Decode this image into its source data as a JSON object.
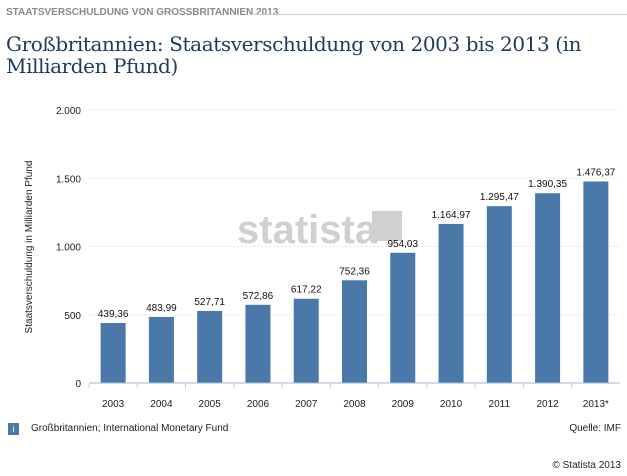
{
  "header": {
    "kicker": "STAATSVERSCHULDUNG VON GROSSBRITANNIEN 2013",
    "title": "Großbritannien: Staatsverschuldung von 2003 bis 2013 (in Milliarden Pfund)"
  },
  "footer": {
    "info_icon": "i",
    "source_note": "Großbritannien; International Monetary Fund",
    "quelle": "Quelle: IMF",
    "copyright": "© Statista 2013"
  },
  "watermark": "statista",
  "chart_data": {
    "type": "bar",
    "title": "Großbritannien: Staatsverschuldung von 2003 bis 2013 (in Milliarden Pfund)",
    "xlabel": "",
    "ylabel": "Staatsverschuldung in Milliarden Pfund",
    "ylim": [
      0,
      2000
    ],
    "yticks": [
      0,
      500,
      1000,
      1500,
      2000
    ],
    "ytick_labels": [
      "0",
      "500",
      "1.000",
      "1.500",
      "2.000"
    ],
    "categories": [
      "2003",
      "2004",
      "2005",
      "2006",
      "2007",
      "2008",
      "2009",
      "2010",
      "2011",
      "2012",
      "2013*"
    ],
    "values": [
      439.36,
      483.99,
      527.71,
      572.86,
      617.22,
      752.36,
      954.03,
      1164.97,
      1295.47,
      1390.35,
      1476.37
    ],
    "value_labels": [
      "439,36",
      "483,99",
      "527,71",
      "572,86",
      "617,22",
      "752,36",
      "954,03",
      "1.164,97",
      "1.295,47",
      "1.390,35",
      "1.476,37"
    ],
    "color": "#4a78a8",
    "grid": true
  }
}
